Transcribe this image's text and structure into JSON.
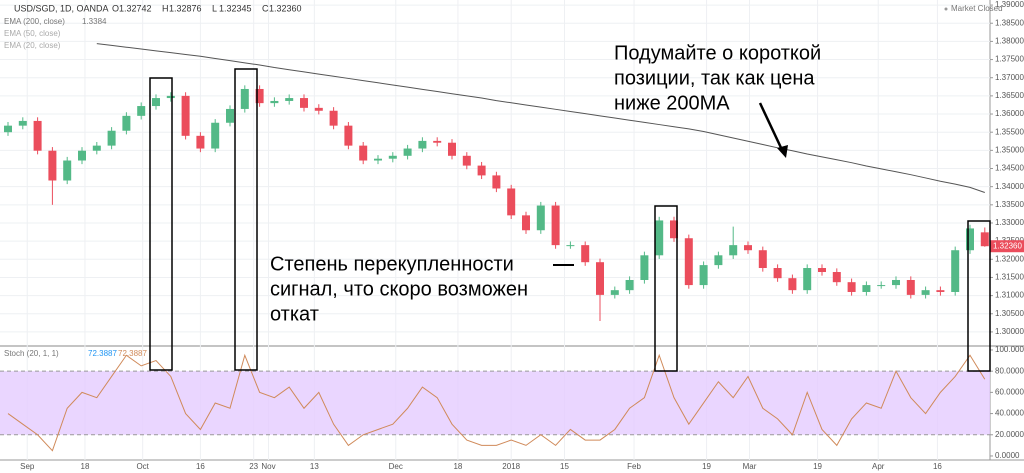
{
  "chart_data": [
    {
      "type": "candlestick",
      "title": "USD/SGD, 1D, OANDA",
      "status": "Market Closed",
      "last_letters": [
        "O",
        "H",
        "L",
        "C"
      ],
      "last_labels": [
        "1.32742",
        "1.32876",
        "1.32345",
        "1.32360"
      ],
      "up_color": "#53b987",
      "down_color": "#eb4d5c",
      "ohlc": {
        "open": [
          1.355,
          1.3568,
          1.3581,
          1.3499,
          1.3417,
          1.3472,
          1.3499,
          1.3513,
          1.3554,
          1.3595,
          1.3622,
          1.3644,
          1.365,
          1.354,
          1.3505,
          1.3576,
          1.3614,
          1.3669,
          1.363,
          1.3636,
          1.3644,
          1.3617,
          1.3609,
          1.3568,
          1.3513,
          1.3472,
          1.3477,
          1.3485,
          1.3505,
          1.3526,
          1.3521,
          1.3485,
          1.3458,
          1.3431,
          1.3395,
          1.3321,
          1.328,
          1.3348,
          1.3239,
          1.3239,
          1.3192,
          1.3102,
          1.3115,
          1.3143,
          1.3211,
          1.3307,
          1.3258,
          1.3129,
          1.3184,
          1.3211,
          1.3239,
          1.3225,
          1.3176,
          1.3148,
          1.3115,
          1.3176,
          1.3165,
          1.3137,
          1.311,
          1.3129,
          1.3129,
          1.3143,
          1.3102,
          1.3115,
          1.311,
          1.3225,
          1.32742
        ],
        "high": [
          1.3578,
          1.3591,
          1.3591,
          1.3509,
          1.3482,
          1.3509,
          1.3523,
          1.3564,
          1.3605,
          1.3632,
          1.3654,
          1.366,
          1.366,
          1.355,
          1.3586,
          1.3624,
          1.3679,
          1.3679,
          1.3646,
          1.3654,
          1.3654,
          1.3627,
          1.3619,
          1.3578,
          1.3523,
          1.3487,
          1.3495,
          1.3515,
          1.3536,
          1.3536,
          1.3531,
          1.3495,
          1.3468,
          1.3441,
          1.3405,
          1.3331,
          1.3358,
          1.3358,
          1.3249,
          1.3249,
          1.3202,
          1.3125,
          1.3153,
          1.3221,
          1.3317,
          1.3317,
          1.3268,
          1.3194,
          1.3221,
          1.329,
          1.3249,
          1.3235,
          1.3186,
          1.3158,
          1.3186,
          1.3186,
          1.3175,
          1.3147,
          1.3139,
          1.3139,
          1.3153,
          1.3153,
          1.3125,
          1.3125,
          1.3235,
          1.3295,
          1.32876
        ],
        "low": [
          1.354,
          1.3558,
          1.3489,
          1.335,
          1.3407,
          1.3462,
          1.3489,
          1.3503,
          1.3544,
          1.3585,
          1.3612,
          1.3634,
          1.353,
          1.3495,
          1.3495,
          1.3566,
          1.3604,
          1.362,
          1.362,
          1.3626,
          1.3607,
          1.3599,
          1.3558,
          1.3503,
          1.3462,
          1.3462,
          1.3467,
          1.3475,
          1.3495,
          1.3511,
          1.3475,
          1.3448,
          1.3421,
          1.3385,
          1.3311,
          1.327,
          1.327,
          1.3229,
          1.3229,
          1.3182,
          1.303,
          1.3092,
          1.3105,
          1.3133,
          1.3201,
          1.3248,
          1.3119,
          1.3119,
          1.3174,
          1.3201,
          1.3215,
          1.3166,
          1.3138,
          1.3105,
          1.3105,
          1.3155,
          1.3127,
          1.31,
          1.31,
          1.3119,
          1.3119,
          1.3092,
          1.3092,
          1.31,
          1.31,
          1.3215,
          1.32345
        ],
        "close": [
          1.3568,
          1.3581,
          1.3499,
          1.3417,
          1.3472,
          1.3499,
          1.3513,
          1.3554,
          1.3595,
          1.3622,
          1.3644,
          1.365,
          1.354,
          1.3505,
          1.3576,
          1.3614,
          1.3669,
          1.363,
          1.3636,
          1.3644,
          1.3617,
          1.3609,
          1.3568,
          1.3513,
          1.3472,
          1.3477,
          1.3485,
          1.3505,
          1.3526,
          1.3521,
          1.3485,
          1.3458,
          1.3431,
          1.3395,
          1.3321,
          1.328,
          1.3348,
          1.3239,
          1.3239,
          1.3192,
          1.3102,
          1.3115,
          1.3143,
          1.3211,
          1.3307,
          1.3258,
          1.3129,
          1.3184,
          1.3211,
          1.3239,
          1.3225,
          1.3176,
          1.3148,
          1.3115,
          1.3176,
          1.3165,
          1.3137,
          1.311,
          1.3129,
          1.3129,
          1.3143,
          1.3102,
          1.3115,
          1.311,
          1.3225,
          1.3285,
          1.3236
        ]
      },
      "series": [
        {
          "name": "EMA (200, close)",
          "color": "#555555",
          "values": [
            null,
            null,
            null,
            null,
            null,
            null,
            1.3794,
            1.3789,
            1.3784,
            1.3779,
            1.3774,
            1.3769,
            1.3764,
            1.3759,
            1.3753,
            1.3747,
            1.3741,
            1.3735,
            1.3728,
            1.3722,
            1.3716,
            1.371,
            1.3704,
            1.3698,
            1.3692,
            1.3686,
            1.368,
            1.3674,
            1.3668,
            1.3662,
            1.3656,
            1.365,
            1.3644,
            1.3637,
            1.3631,
            1.3625,
            1.3619,
            1.3613,
            1.3607,
            1.3601,
            1.3595,
            1.3589,
            1.3583,
            1.3577,
            1.3571,
            1.3565,
            1.3559,
            1.3552,
            1.3543,
            1.3534,
            1.3525,
            1.3516,
            1.3507,
            1.3499,
            1.349,
            1.3482,
            1.3474,
            1.3466,
            1.3457,
            1.3449,
            1.3441,
            1.3433,
            1.3424,
            1.3415,
            1.3407,
            1.3398,
            1.3384
          ]
        }
      ],
      "hidden_indicators": [
        "EMA (50, close)",
        "EMA (20, close)"
      ],
      "ylim": [
        1.2964,
        1.3914
      ],
      "yticks": [
        {
          "value": 1.3,
          "label": "1.30000"
        },
        {
          "value": 1.305,
          "label": "1.30500"
        },
        {
          "value": 1.31,
          "label": "1.31000"
        },
        {
          "value": 1.315,
          "label": "1.31500"
        },
        {
          "value": 1.32,
          "label": "1.32000"
        },
        {
          "value": 1.325,
          "label": "1.32500"
        },
        {
          "value": 1.33,
          "label": "1.33000"
        },
        {
          "value": 1.335,
          "label": "1.33500"
        },
        {
          "value": 1.34,
          "label": "1.34000"
        },
        {
          "value": 1.345,
          "label": "1.34500"
        },
        {
          "value": 1.35,
          "label": "1.35000"
        },
        {
          "value": 1.355,
          "label": "1.35500"
        },
        {
          "value": 1.36,
          "label": "1.36000"
        },
        {
          "value": 1.365,
          "label": "1.36500"
        },
        {
          "value": 1.37,
          "label": "1.37000"
        },
        {
          "value": 1.375,
          "label": "1.37500"
        },
        {
          "value": 1.38,
          "label": "1.38000"
        },
        {
          "value": 1.385,
          "label": "1.38500"
        },
        {
          "value": 1.39,
          "label": "1.39000"
        }
      ],
      "xticks": [
        {
          "value": 1.3,
          "label": "Sep"
        },
        {
          "value": 5.2,
          "label": "18"
        },
        {
          "value": 9.1,
          "label": "Oct"
        },
        {
          "value": 13.0,
          "label": "16"
        },
        {
          "value": 16.6,
          "label": "23"
        },
        {
          "value": 17.6,
          "label": "Nov"
        },
        {
          "value": 20.7,
          "label": "13"
        },
        {
          "value": 26.2,
          "label": "Dec"
        },
        {
          "value": 30.4,
          "label": "18"
        },
        {
          "value": 34.0,
          "label": "2018"
        },
        {
          "value": 37.6,
          "label": "15"
        },
        {
          "value": 42.3,
          "label": "Feb"
        },
        {
          "value": 47.2,
          "label": "19"
        },
        {
          "value": 50.1,
          "label": "Mar"
        },
        {
          "value": 54.7,
          "label": "19"
        },
        {
          "value": 58.8,
          "label": "Apr"
        },
        {
          "value": 62.8,
          "label": "16"
        }
      ],
      "grid": true,
      "annotations": [
        {
          "lines": [
            "Подумайте о короткой",
            "позиции, так как цена",
            "ниже 200MA"
          ]
        },
        {
          "lines": [
            "Степень перекупленности",
            "сигнал, что скоро возможен",
            "откат"
          ]
        }
      ]
    },
    {
      "type": "line",
      "title": "Stoch (20, 1, 1)",
      "band": [
        20,
        80
      ],
      "band_color": "#e5ccff",
      "series": [
        {
          "name": "Stoch",
          "color": "#d08a5a",
          "values": [
            40,
            30,
            20,
            5,
            45,
            60,
            55,
            75,
            95,
            85,
            90,
            75,
            40,
            25,
            50,
            45,
            95,
            60,
            55,
            65,
            45,
            60,
            30,
            10,
            20,
            25,
            30,
            45,
            65,
            55,
            30,
            15,
            10,
            10,
            15,
            10,
            20,
            10,
            25,
            15,
            15,
            25,
            45,
            55,
            95,
            55,
            30,
            50,
            70,
            55,
            75,
            45,
            35,
            20,
            60,
            25,
            10,
            35,
            50,
            45,
            80,
            55,
            40,
            60,
            75,
            95,
            72.3887
          ]
        }
      ],
      "ylim": [
        -3.8,
        102.8
      ],
      "yticks": [
        {
          "value": 0,
          "label": "0.0000"
        },
        {
          "value": 20,
          "label": "20.0000"
        },
        {
          "value": 40,
          "label": "40.0000"
        },
        {
          "value": 60,
          "label": "60.0000"
        },
        {
          "value": 80,
          "label": "80.0000"
        },
        {
          "value": 100,
          "label": "100.0000"
        }
      ]
    }
  ]
}
